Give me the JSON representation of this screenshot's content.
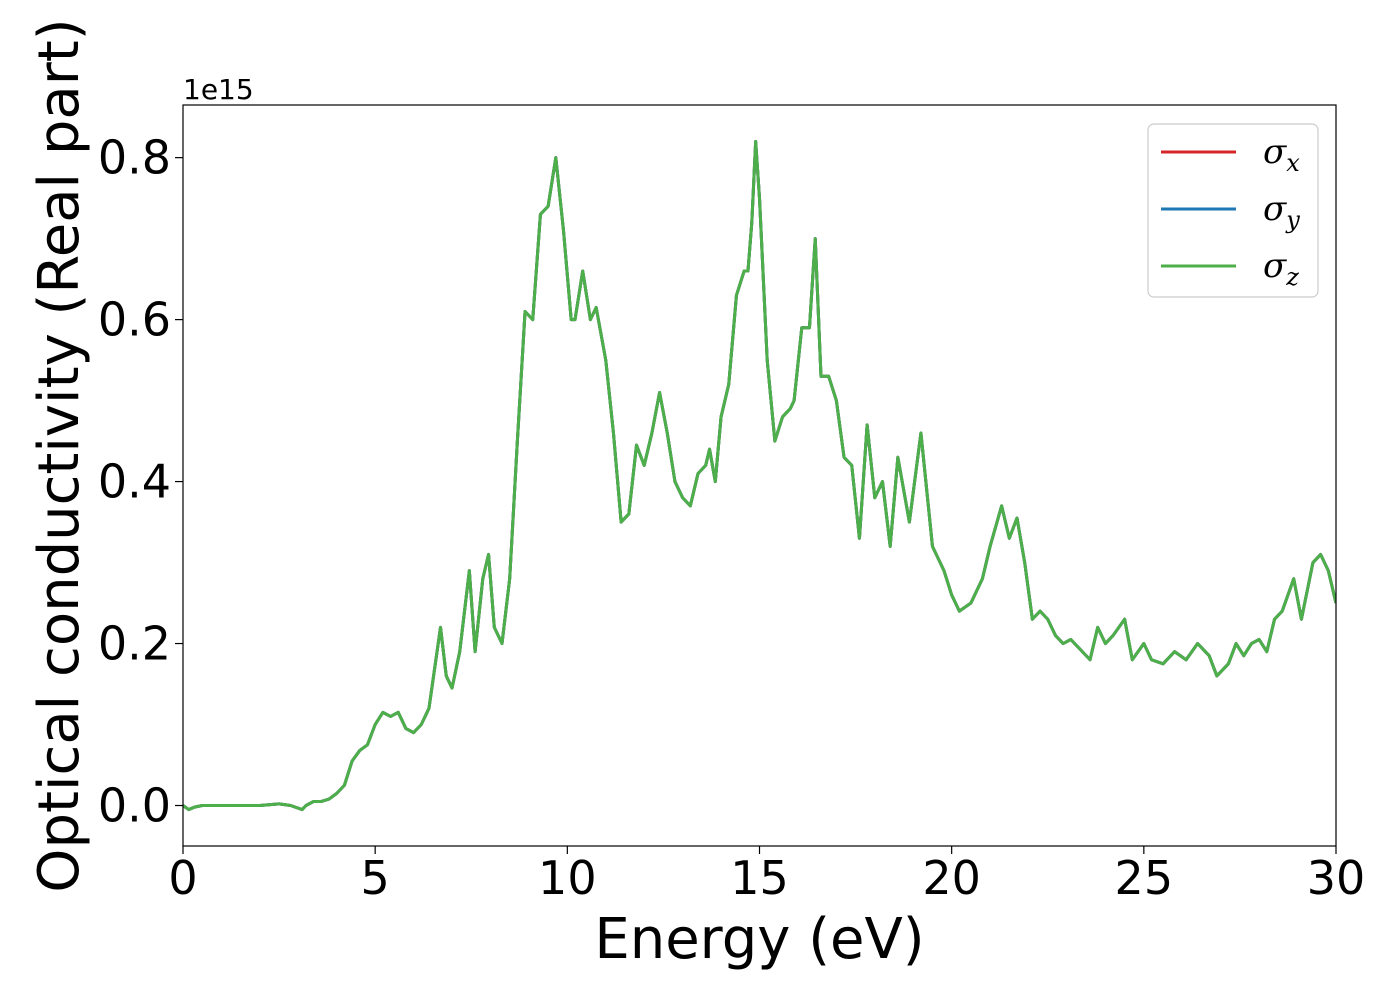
{
  "chart_data": {
    "type": "line",
    "xlabel": "Energy (eV)",
    "ylabel": "Optical conductivity (Real part)",
    "offset_text": "1e15",
    "xlim": [
      0,
      30
    ],
    "ylim": [
      -0.05,
      0.865
    ],
    "x_ticks": [
      0,
      5,
      10,
      15,
      20,
      25,
      30
    ],
    "x_tick_labels": [
      "0",
      "5",
      "10",
      "15",
      "20",
      "25",
      "30"
    ],
    "y_ticks": [
      0.0,
      0.2,
      0.4,
      0.6,
      0.8
    ],
    "y_tick_labels": [
      "0.0",
      "0.2",
      "0.4",
      "0.6",
      "0.8"
    ],
    "grid": false,
    "legend_position": "top-right",
    "x": [
      0,
      0.15,
      0.3,
      0.5,
      1.0,
      1.5,
      2.0,
      2.5,
      2.8,
      3.1,
      3.2,
      3.4,
      3.6,
      3.8,
      4.0,
      4.2,
      4.4,
      4.6,
      4.8,
      5.0,
      5.2,
      5.4,
      5.6,
      5.8,
      6.0,
      6.2,
      6.4,
      6.55,
      6.7,
      6.85,
      7.0,
      7.2,
      7.45,
      7.6,
      7.8,
      7.95,
      8.1,
      8.3,
      8.5,
      8.7,
      8.9,
      9.1,
      9.3,
      9.5,
      9.7,
      9.9,
      10.1,
      10.2,
      10.4,
      10.6,
      10.75,
      11.0,
      11.2,
      11.4,
      11.6,
      11.8,
      12.0,
      12.2,
      12.4,
      12.6,
      12.8,
      13.0,
      13.2,
      13.4,
      13.6,
      13.7,
      13.85,
      14.0,
      14.2,
      14.4,
      14.6,
      14.7,
      14.8,
      14.9,
      15.0,
      15.2,
      15.4,
      15.6,
      15.8,
      15.9,
      16.1,
      16.3,
      16.45,
      16.6,
      16.8,
      17.0,
      17.2,
      17.4,
      17.6,
      17.8,
      18.0,
      18.2,
      18.4,
      18.6,
      18.9,
      19.2,
      19.5,
      19.8,
      20.0,
      20.2,
      20.5,
      20.8,
      21.0,
      21.3,
      21.5,
      21.7,
      21.9,
      22.1,
      22.3,
      22.5,
      22.7,
      22.9,
      23.1,
      23.4,
      23.6,
      23.8,
      24.0,
      24.2,
      24.5,
      24.7,
      25.0,
      25.2,
      25.5,
      25.8,
      26.1,
      26.4,
      26.7,
      26.9,
      27.2,
      27.4,
      27.6,
      27.8,
      28.0,
      28.2,
      28.4,
      28.6,
      28.9,
      29.1,
      29.4,
      29.6,
      29.8,
      30.0
    ],
    "series": [
      {
        "name": "σ_x",
        "color": "#d62728",
        "values": [
          0.0,
          -0.005,
          -0.002,
          0.0,
          0.0,
          0.0,
          0.0,
          0.002,
          0.0,
          -0.005,
          0.0,
          0.005,
          0.005,
          0.008,
          0.015,
          0.025,
          0.055,
          0.068,
          0.075,
          0.1,
          0.115,
          0.11,
          0.115,
          0.095,
          0.09,
          0.1,
          0.12,
          0.17,
          0.22,
          0.16,
          0.145,
          0.19,
          0.29,
          0.19,
          0.28,
          0.31,
          0.22,
          0.2,
          0.28,
          0.45,
          0.61,
          0.6,
          0.73,
          0.74,
          0.8,
          0.71,
          0.6,
          0.6,
          0.66,
          0.6,
          0.615,
          0.55,
          0.46,
          0.35,
          0.36,
          0.445,
          0.42,
          0.46,
          0.51,
          0.46,
          0.4,
          0.38,
          0.37,
          0.41,
          0.42,
          0.44,
          0.4,
          0.48,
          0.52,
          0.63,
          0.66,
          0.66,
          0.72,
          0.82,
          0.75,
          0.55,
          0.45,
          0.48,
          0.49,
          0.5,
          0.59,
          0.59,
          0.7,
          0.53,
          0.53,
          0.5,
          0.43,
          0.42,
          0.33,
          0.47,
          0.38,
          0.4,
          0.32,
          0.43,
          0.35,
          0.46,
          0.32,
          0.29,
          0.26,
          0.24,
          0.25,
          0.28,
          0.32,
          0.37,
          0.33,
          0.355,
          0.3,
          0.23,
          0.24,
          0.23,
          0.21,
          0.2,
          0.205,
          0.19,
          0.18,
          0.22,
          0.2,
          0.21,
          0.23,
          0.18,
          0.2,
          0.18,
          0.175,
          0.19,
          0.18,
          0.2,
          0.185,
          0.16,
          0.175,
          0.2,
          0.185,
          0.2,
          0.205,
          0.19,
          0.23,
          0.24,
          0.28,
          0.23,
          0.3,
          0.31,
          0.29,
          0.25
        ]
      },
      {
        "name": "σ_y",
        "color": "#1f77b4",
        "values": [
          0.0,
          -0.005,
          -0.002,
          0.0,
          0.0,
          0.0,
          0.0,
          0.002,
          0.0,
          -0.005,
          0.0,
          0.005,
          0.005,
          0.008,
          0.015,
          0.025,
          0.055,
          0.068,
          0.075,
          0.1,
          0.115,
          0.11,
          0.115,
          0.095,
          0.09,
          0.1,
          0.12,
          0.17,
          0.22,
          0.16,
          0.145,
          0.19,
          0.29,
          0.19,
          0.28,
          0.31,
          0.22,
          0.2,
          0.28,
          0.45,
          0.61,
          0.6,
          0.73,
          0.74,
          0.8,
          0.71,
          0.6,
          0.6,
          0.66,
          0.6,
          0.615,
          0.55,
          0.46,
          0.35,
          0.36,
          0.445,
          0.42,
          0.46,
          0.51,
          0.46,
          0.4,
          0.38,
          0.37,
          0.41,
          0.42,
          0.44,
          0.4,
          0.48,
          0.52,
          0.63,
          0.66,
          0.66,
          0.72,
          0.82,
          0.75,
          0.55,
          0.45,
          0.48,
          0.49,
          0.5,
          0.59,
          0.59,
          0.7,
          0.53,
          0.53,
          0.5,
          0.43,
          0.42,
          0.33,
          0.47,
          0.38,
          0.4,
          0.32,
          0.43,
          0.35,
          0.46,
          0.32,
          0.29,
          0.26,
          0.24,
          0.25,
          0.28,
          0.32,
          0.37,
          0.33,
          0.355,
          0.3,
          0.23,
          0.24,
          0.23,
          0.21,
          0.2,
          0.205,
          0.19,
          0.18,
          0.22,
          0.2,
          0.21,
          0.23,
          0.18,
          0.2,
          0.18,
          0.175,
          0.19,
          0.18,
          0.2,
          0.185,
          0.16,
          0.175,
          0.2,
          0.185,
          0.2,
          0.205,
          0.19,
          0.23,
          0.24,
          0.28,
          0.23,
          0.3,
          0.31,
          0.29,
          0.25
        ]
      },
      {
        "name": "σ_z",
        "color": "#4daf4a",
        "values": [
          0.0,
          -0.005,
          -0.002,
          0.0,
          0.0,
          0.0,
          0.0,
          0.002,
          0.0,
          -0.005,
          0.0,
          0.005,
          0.005,
          0.008,
          0.015,
          0.025,
          0.055,
          0.068,
          0.075,
          0.1,
          0.115,
          0.11,
          0.115,
          0.095,
          0.09,
          0.1,
          0.12,
          0.17,
          0.22,
          0.16,
          0.145,
          0.19,
          0.29,
          0.19,
          0.28,
          0.31,
          0.22,
          0.2,
          0.28,
          0.45,
          0.61,
          0.6,
          0.73,
          0.74,
          0.8,
          0.71,
          0.6,
          0.6,
          0.66,
          0.6,
          0.615,
          0.55,
          0.46,
          0.35,
          0.36,
          0.445,
          0.42,
          0.46,
          0.51,
          0.46,
          0.4,
          0.38,
          0.37,
          0.41,
          0.42,
          0.44,
          0.4,
          0.48,
          0.52,
          0.63,
          0.66,
          0.66,
          0.72,
          0.82,
          0.75,
          0.55,
          0.45,
          0.48,
          0.49,
          0.5,
          0.59,
          0.59,
          0.7,
          0.53,
          0.53,
          0.5,
          0.43,
          0.42,
          0.33,
          0.47,
          0.38,
          0.4,
          0.32,
          0.43,
          0.35,
          0.46,
          0.32,
          0.29,
          0.26,
          0.24,
          0.25,
          0.28,
          0.32,
          0.37,
          0.33,
          0.355,
          0.3,
          0.23,
          0.24,
          0.23,
          0.21,
          0.2,
          0.205,
          0.19,
          0.18,
          0.22,
          0.2,
          0.21,
          0.23,
          0.18,
          0.2,
          0.18,
          0.175,
          0.19,
          0.18,
          0.2,
          0.185,
          0.16,
          0.175,
          0.2,
          0.185,
          0.2,
          0.205,
          0.19,
          0.23,
          0.24,
          0.28,
          0.23,
          0.3,
          0.31,
          0.29,
          0.25
        ]
      }
    ]
  }
}
